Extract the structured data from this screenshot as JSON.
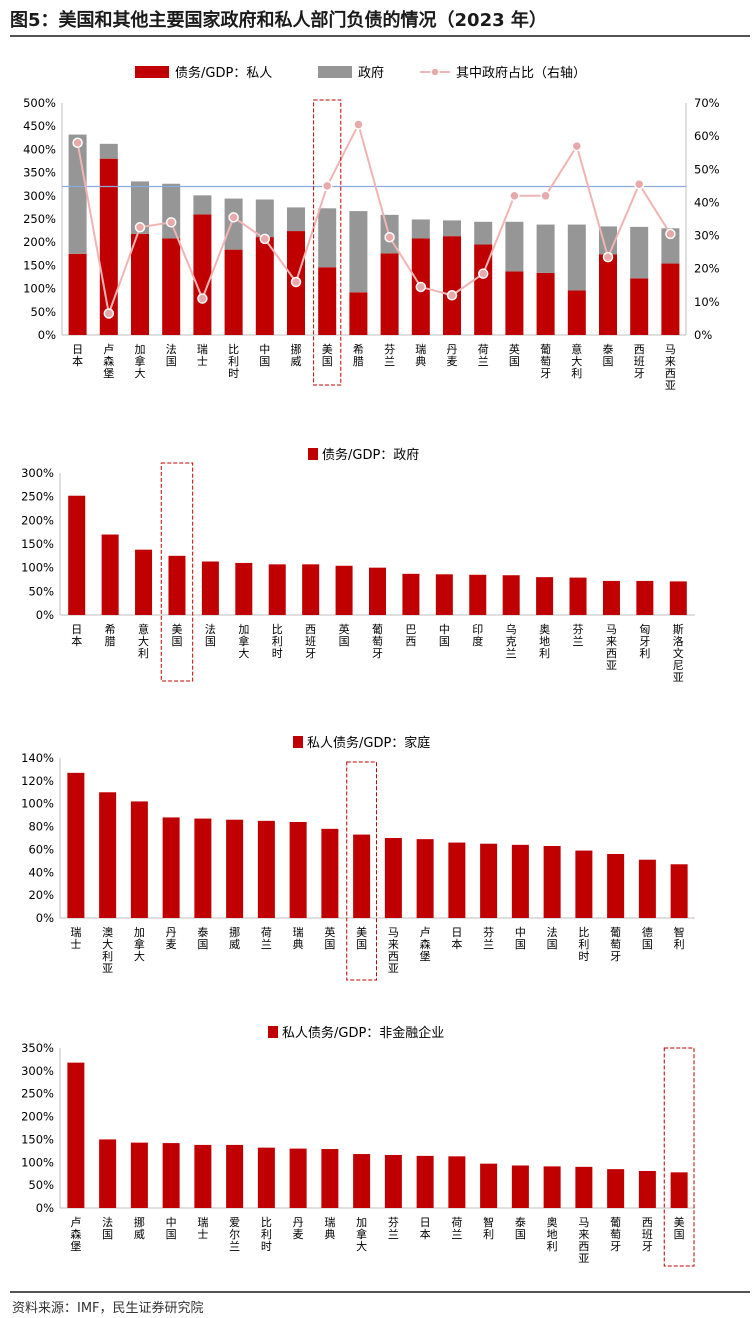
{
  "figure_title": "图5：美国和其他主要国家政府和私人部门负债的情况（2023 年）",
  "source": "资料来源：IMF，民生证券研究院",
  "colors": {
    "red": "#C00000",
    "gray": "#969696",
    "pink": "#F0B4B4",
    "ref_line": "#8EA9DB",
    "highlight": "#C00000"
  },
  "chart_data": [
    {
      "type": "bar",
      "stacked": true,
      "legend_position": "top",
      "categories": [
        "日本",
        "卢森堡",
        "加拿大",
        "法国",
        "瑞士",
        "比利时",
        "中国",
        "挪威",
        "美国",
        "希腊",
        "芬兰",
        "瑞典",
        "丹麦",
        "荷兰",
        "英国",
        "葡萄牙",
        "意大利",
        "泰国",
        "西班牙",
        "马来西亚"
      ],
      "series": [
        {
          "name": "债务/GDP：私人",
          "type": "bar",
          "axis": "left",
          "color": "#C00000",
          "values": [
            175,
            380,
            218,
            208,
            260,
            184,
            211,
            224,
            146,
            92,
            176,
            208,
            213,
            195,
            137,
            134,
            96,
            174,
            122,
            154
          ]
        },
        {
          "name": "政府",
          "type": "bar",
          "axis": "left",
          "color": "#969696",
          "values": [
            257,
            32,
            113,
            118,
            41,
            110,
            81,
            51,
            127,
            175,
            83,
            41,
            34,
            49,
            107,
            104,
            142,
            60,
            111,
            76
          ]
        },
        {
          "name": "其中政府占比（右轴）",
          "type": "line",
          "axis": "right",
          "color": "#F0B4B4",
          "values": [
            58,
            6.5,
            32.5,
            34,
            11,
            35.5,
            29,
            16,
            45,
            63.5,
            29.5,
            14.5,
            12,
            18.5,
            42,
            42,
            57,
            23.5,
            45.5,
            30.5
          ]
        }
      ],
      "reference_line": {
        "axis": "left",
        "value": 320
      },
      "ylim": [
        0,
        500
      ],
      "yticks": [
        "0%",
        "50%",
        "100%",
        "150%",
        "200%",
        "250%",
        "300%",
        "350%",
        "400%",
        "450%",
        "500%"
      ],
      "y2lim": [
        0,
        70
      ],
      "y2ticks": [
        "0%",
        "10%",
        "20%",
        "30%",
        "40%",
        "50%",
        "60%",
        "70%"
      ],
      "highlight_category": "美国"
    },
    {
      "type": "bar",
      "title": "债务/GDP：政府",
      "legend_position": "top",
      "categories": [
        "日本",
        "希腊",
        "意大利",
        "美国",
        "法国",
        "加拿大",
        "比利时",
        "西班牙",
        "英国",
        "葡萄牙",
        "巴西",
        "中国",
        "印度",
        "乌克兰",
        "奥地利",
        "芬兰",
        "马来西亚",
        "匈牙利",
        "斯洛文尼亚"
      ],
      "series": [
        {
          "name": "债务/GDP：政府",
          "color": "#C00000",
          "values": [
            252,
            170,
            138,
            125,
            113,
            110,
            107,
            107,
            104,
            100,
            87,
            86,
            85,
            84,
            80,
            79,
            72,
            72,
            71
          ]
        }
      ],
      "ylim": [
        0,
        300
      ],
      "yticks": [
        "0%",
        "50%",
        "100%",
        "150%",
        "200%",
        "250%",
        "300%"
      ],
      "highlight_category": "美国"
    },
    {
      "type": "bar",
      "title": "私人债务/GDP：家庭",
      "legend_position": "top",
      "categories": [
        "瑞士",
        "澳大利亚",
        "加拿大",
        "丹麦",
        "泰国",
        "挪威",
        "荷兰",
        "瑞典",
        "英国",
        "美国",
        "马来西亚",
        "卢森堡",
        "日本",
        "芬兰",
        "中国",
        "法国",
        "比利时",
        "葡萄牙",
        "德国",
        "智利"
      ],
      "series": [
        {
          "name": "私人债务/GDP：家庭",
          "color": "#C00000",
          "values": [
            127,
            110,
            102,
            88,
            87,
            86,
            85,
            84,
            78,
            73,
            70,
            69,
            66,
            65,
            64,
            63,
            59,
            56,
            51,
            47
          ]
        }
      ],
      "ylim": [
        0,
        140
      ],
      "yticks": [
        "0%",
        "20%",
        "40%",
        "60%",
        "80%",
        "100%",
        "120%",
        "140%"
      ],
      "highlight_category": "美国"
    },
    {
      "type": "bar",
      "title": "私人债务/GDP：非金融企业",
      "legend_position": "top",
      "categories": [
        "卢森堡",
        "法国",
        "挪威",
        "中国",
        "瑞士",
        "爱尔兰",
        "比利时",
        "丹麦",
        "瑞典",
        "加拿大",
        "芬兰",
        "日本",
        "荷兰",
        "智利",
        "泰国",
        "奥地利",
        "马来西亚",
        "葡萄牙",
        "西班牙",
        "美国"
      ],
      "series": [
        {
          "name": "私人债务/GDP：非金融企业",
          "color": "#C00000",
          "values": [
            318,
            150,
            143,
            142,
            138,
            138,
            132,
            130,
            129,
            118,
            116,
            114,
            113,
            97,
            93,
            91,
            90,
            85,
            81,
            78
          ]
        }
      ],
      "ylim": [
        0,
        350
      ],
      "yticks": [
        "0%",
        "50%",
        "100%",
        "150%",
        "200%",
        "250%",
        "300%",
        "350%"
      ],
      "highlight_category": "美国"
    }
  ]
}
